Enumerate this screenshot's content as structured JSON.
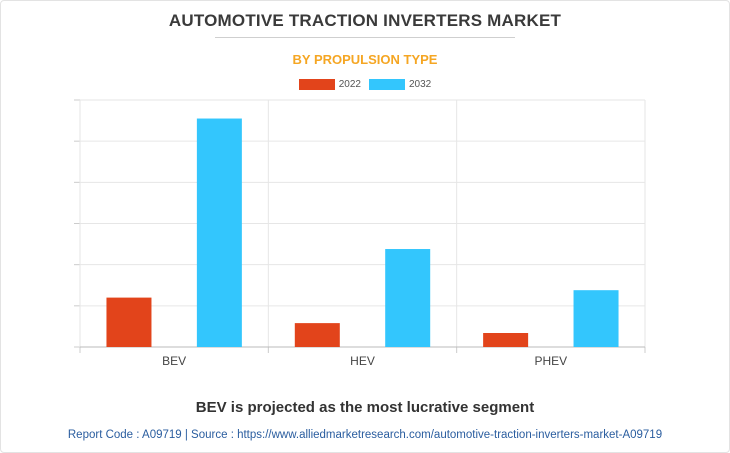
{
  "chart_data": {
    "type": "bar",
    "title": "AUTOMOTIVE TRACTION INVERTERS MARKET",
    "subtitle": "BY PROPULSION TYPE",
    "categories": [
      "BEV",
      "HEV",
      "PHEV"
    ],
    "series": [
      {
        "name": "2022",
        "color": "#e2441b",
        "values": [
          1.2,
          0.58,
          0.34
        ]
      },
      {
        "name": "2032",
        "color": "#33c6fd",
        "values": [
          5.55,
          2.38,
          1.38
        ]
      }
    ],
    "ylim": [
      0,
      6
    ],
    "yticks": [
      0,
      1,
      2,
      3,
      4,
      5,
      6
    ],
    "y_tick_labels_shown": false,
    "grid": true,
    "legend_position": "top-center"
  },
  "footer": {
    "headline": "BEV is projected as the most lucrative segment",
    "source": "Report Code : A09719  |  Source : https://www.alliedmarketresearch.com/automotive-traction-inverters-market-A09719"
  }
}
